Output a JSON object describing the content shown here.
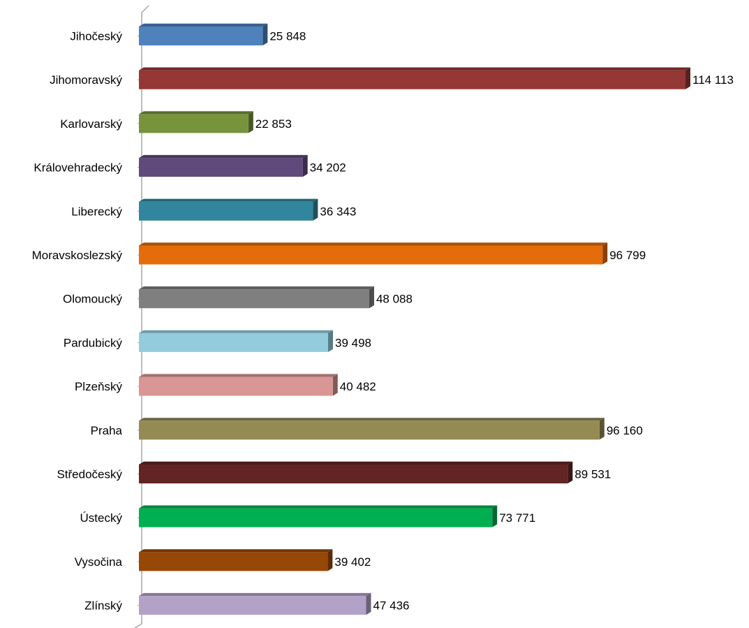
{
  "chart_data": {
    "type": "bar",
    "orientation": "horizontal",
    "title": "",
    "xlabel": "",
    "ylabel": "",
    "legend": "none",
    "grid": false,
    "xlim": [
      0,
      114113
    ],
    "categories": [
      "Jihočeský",
      "Jihomoravský",
      "Karlovarský",
      "Královehradecký",
      "Liberecký",
      "Moravskoslezský",
      "Olomoucký",
      "Pardubický",
      "Plzeňský",
      "Praha",
      "Středočeský",
      "Ústecký",
      "Vysočina",
      "Zlínský"
    ],
    "values": [
      25848,
      114113,
      22853,
      34202,
      36343,
      96799,
      48088,
      39498,
      40482,
      96160,
      89531,
      73771,
      39402,
      47436
    ],
    "value_labels": [
      "25 848",
      "114 113",
      "22 853",
      "34 202",
      "36 343",
      "96 799",
      "48 088",
      "39 498",
      "40 482",
      "96 160",
      "89 531",
      "73 771",
      "39 402",
      "47 436"
    ],
    "colors": [
      "#4f81bd",
      "#953735",
      "#77933c",
      "#604a7b",
      "#31859c",
      "#e46c0a",
      "#7f7f7f",
      "#93cddd",
      "#d99694",
      "#948a54",
      "#632523",
      "#00b050",
      "#974806",
      "#b3a2c7"
    ]
  }
}
